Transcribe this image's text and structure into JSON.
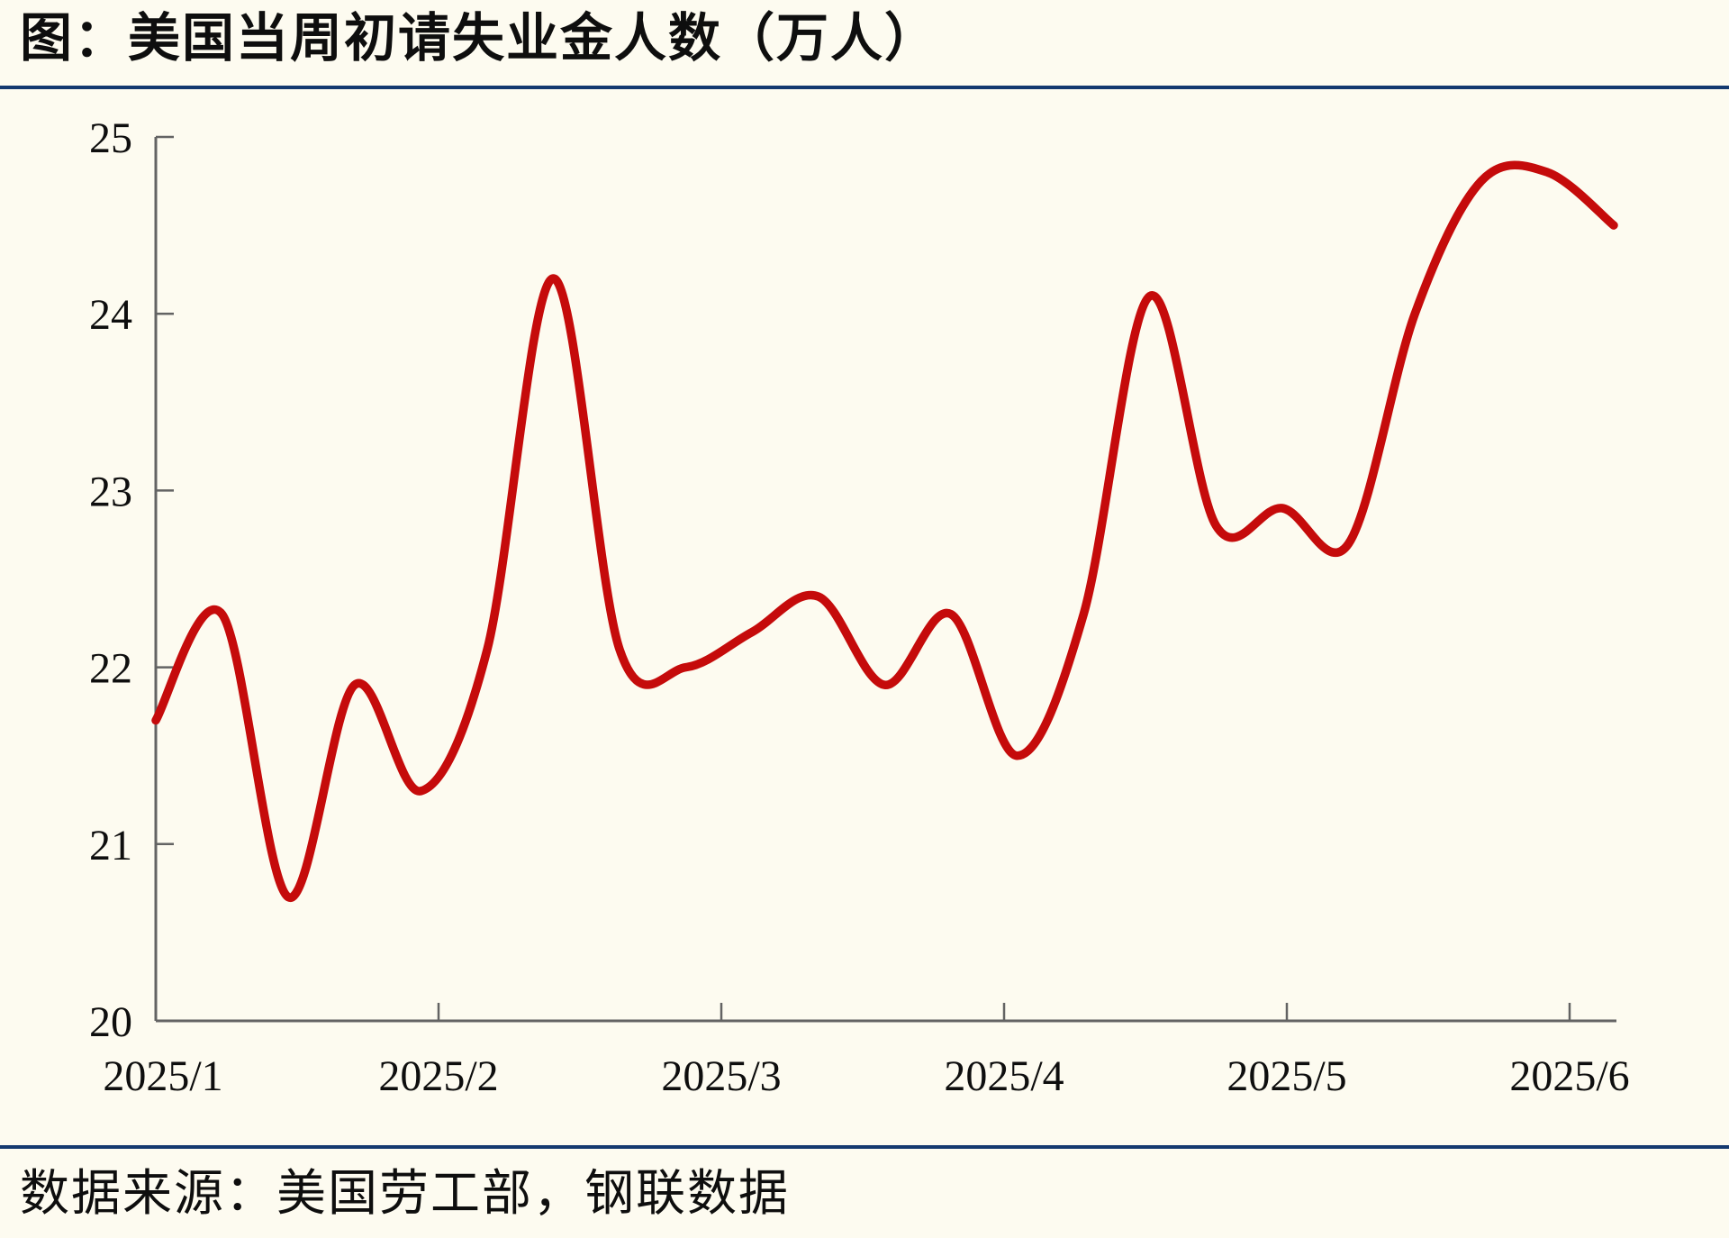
{
  "header": {
    "title": "图：美国当周初请失业金人数（万人）"
  },
  "footer": {
    "source": "数据来源：美国劳工部，钢联数据"
  },
  "colors": {
    "line_red": "#C50B0B",
    "separator_blue": "#14396F",
    "axis_gray": "#636363",
    "background_cream": "#FDFBF0",
    "text_black": "#0e0e0e"
  },
  "chart_data": {
    "type": "line",
    "title": "图：美国当周初请失业金人数（万人）",
    "source": "数据来源：美国劳工部，钢联数据",
    "xlabel": "",
    "ylabel": "万人",
    "frequency": "weekly",
    "x_tick_labels": [
      "2025/1",
      "2025/2",
      "2025/3",
      "2025/4",
      "2025/5",
      "2025/6"
    ],
    "y_ticks": [
      20,
      21,
      22,
      23,
      24,
      25
    ],
    "ylim": [
      20,
      25
    ],
    "grid": false,
    "legend": "none",
    "series": [
      {
        "name": "美国当周初请失业金人数",
        "values": [
          21.7,
          22.3,
          20.7,
          21.9,
          21.3,
          22.1,
          24.2,
          22.1,
          22.0,
          22.2,
          22.4,
          21.9,
          22.3,
          21.5,
          22.3,
          24.1,
          22.8,
          22.9,
          22.7,
          24.0,
          24.75,
          24.8,
          24.5
        ]
      }
    ]
  }
}
